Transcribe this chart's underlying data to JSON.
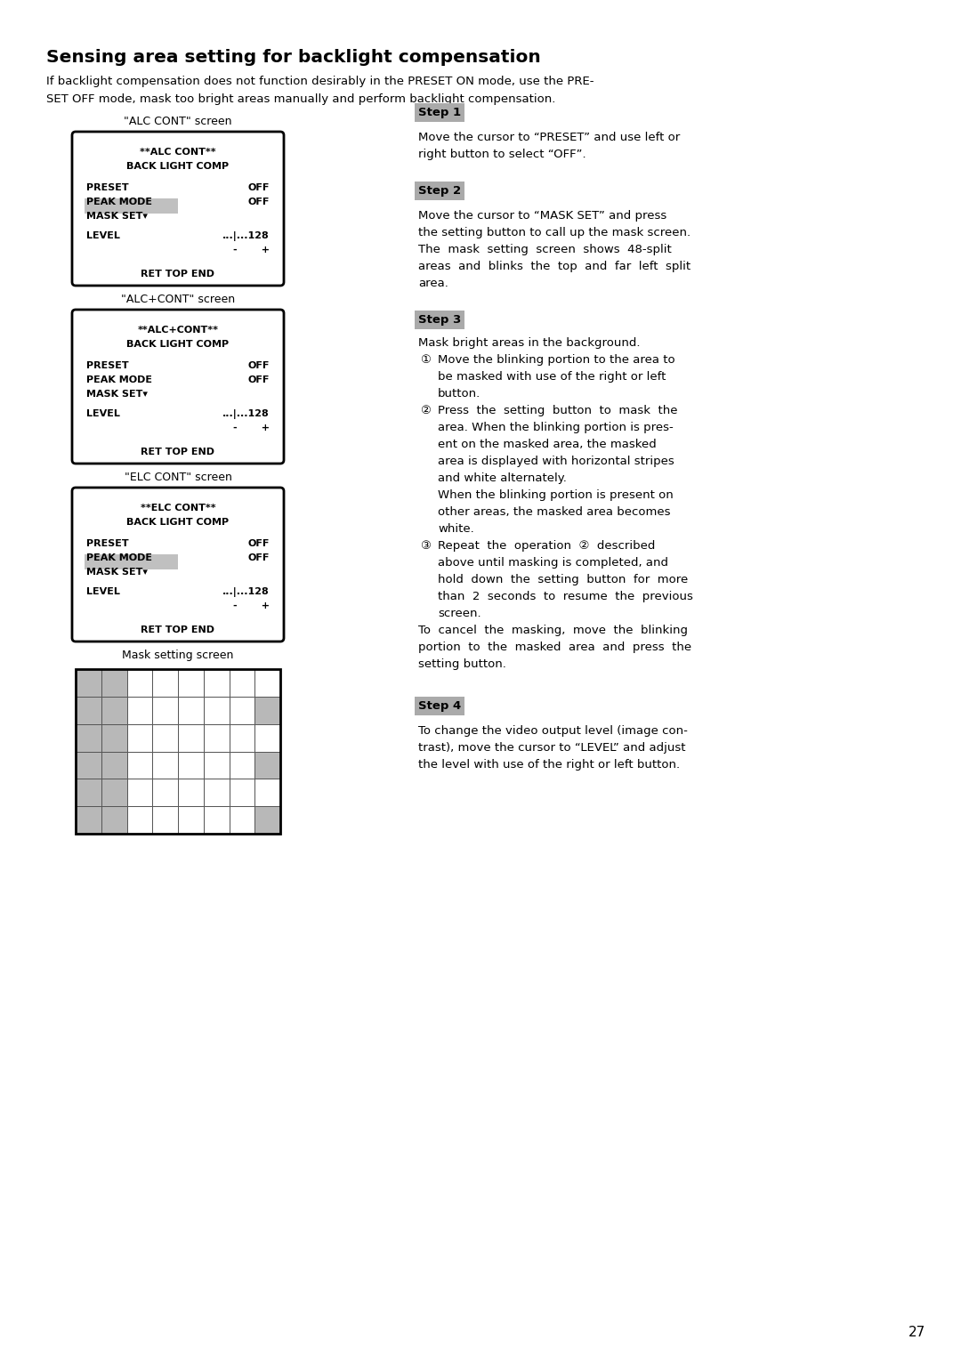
{
  "page_width": 10.8,
  "page_height": 15.33,
  "bg_color": "#ffffff",
  "title": "Sensing area setting for backlight compensation",
  "intro_line1": "If backlight compensation does not function desirably in the PRESET ON mode, use the PRE-",
  "intro_line2": "SET OFF mode, mask too bright areas manually and perform backlight compensation.",
  "screens": [
    {
      "label": "\"ALC CONT\" screen",
      "title_line1": "**ALC CONT**",
      "title_line2": "BACK LIGHT COMP",
      "row1_left": "PRESET",
      "row1_right": "OFF",
      "row2_left": "PEAK MODE",
      "row2_right": "OFF",
      "row3_left": "MASK SET▾",
      "row3_highlight": true,
      "level_left": "LEVEL",
      "level_right": "...|...128",
      "level_right2": "-       +",
      "footer": "RET TOP END"
    },
    {
      "label": "\"ALC+CONT\" screen",
      "title_line1": "**ALC+CONT**",
      "title_line2": "BACK LIGHT COMP",
      "row1_left": "PRESET",
      "row1_right": "OFF",
      "row2_left": "PEAK MODE",
      "row2_right": "OFF",
      "row3_left": "MASK SET▾",
      "row3_highlight": false,
      "level_left": "LEVEL",
      "level_right": "...|...128",
      "level_right2": "-       +",
      "footer": "RET TOP END"
    },
    {
      "label": "\"ELC CONT\" screen",
      "title_line1": "**ELC CONT**",
      "title_line2": "BACK LIGHT COMP",
      "row1_left": "PRESET",
      "row1_right": "OFF",
      "row2_left": "PEAK MODE",
      "row2_right": "OFF",
      "row3_left": "MASK SET▾",
      "row3_highlight": true,
      "level_left": "LEVEL",
      "level_right": "...|...128",
      "level_right2": "-       +",
      "footer": "RET TOP END"
    }
  ],
  "mask_label": "Mask setting screen",
  "mask_grid_cols": 8,
  "mask_grid_rows": 6,
  "step1_label": "Step 1",
  "step1_text": [
    "Move the cursor to “PRESET” and use left or",
    "right button to select “OFF”."
  ],
  "step2_label": "Step 2",
  "step2_text": [
    "Move the cursor to “MASK SET” and press",
    "the setting button to call up the mask screen.",
    "The  mask  setting  screen  shows  48-split",
    "areas  and  blinks  the  top  and  far  left  split",
    "area."
  ],
  "step3_label": "Step 3",
  "step3_intro": "Mask bright areas in the background.",
  "step3_sub1_num": "①",
  "step3_sub1": [
    "Move the blinking portion to the area to",
    "be masked with use of the right or left",
    "button."
  ],
  "step3_sub2_num": "②",
  "step3_sub2": [
    "Press  the  setting  button  to  mask  the",
    "area. When the blinking portion is pres-",
    "ent on the masked area, the masked",
    "area is displayed with horizontal stripes",
    "and white alternately.",
    "When the blinking portion is present on",
    "other areas, the masked area becomes",
    "white."
  ],
  "step3_sub3_num": "③",
  "step3_sub3": [
    "Repeat  the  operation  ②  described",
    "above until masking is completed, and",
    "hold  down  the  setting  button  for  more",
    "than  2  seconds  to  resume  the  previous",
    "screen."
  ],
  "step3_cancel": [
    "To  cancel  the  masking,  move  the  blinking",
    "portion  to  the  masked  area  and  press  the",
    "setting button."
  ],
  "step4_label": "Step 4",
  "step4_text": [
    "To change the video output level (image con-",
    "trast), move the cursor to “LEVEL” and adjust",
    "the level with use of the right or left button."
  ],
  "page_number": "27"
}
